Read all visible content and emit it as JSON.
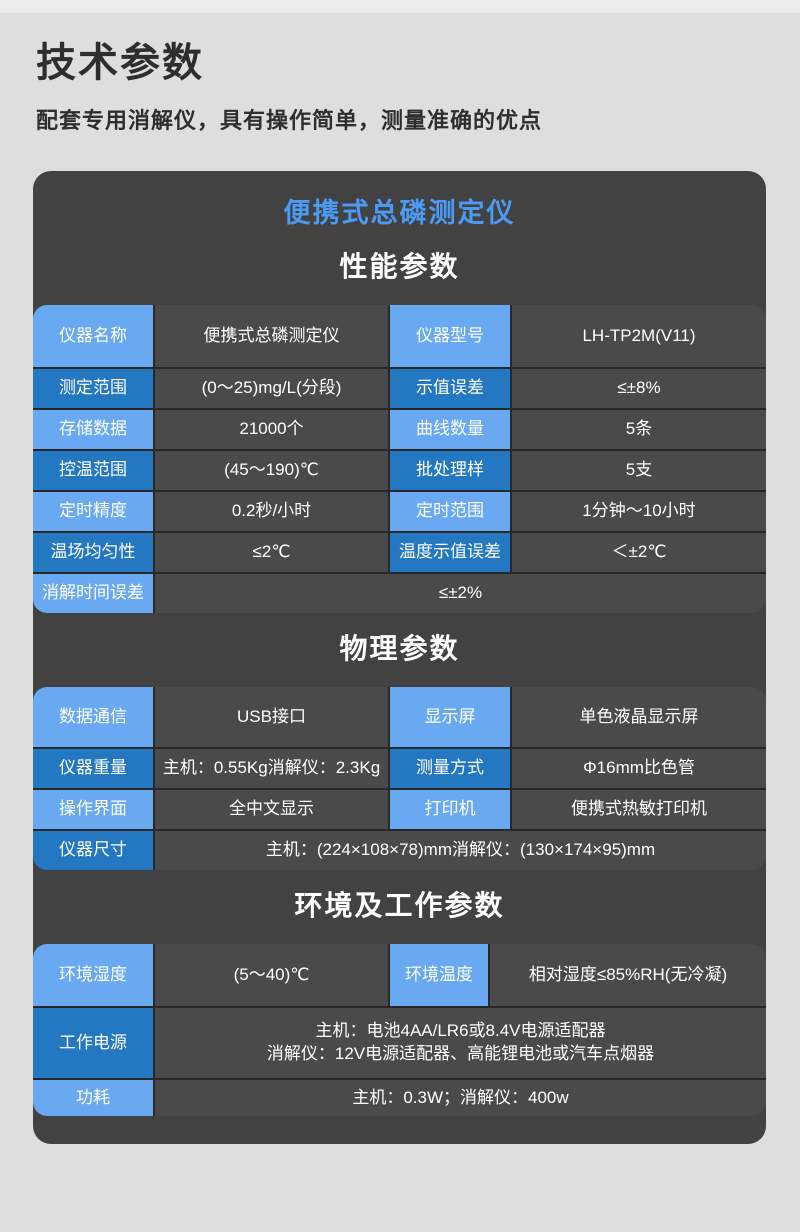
{
  "page": {
    "title": "技术参数",
    "subtitle": "配套专用消解仪，具有操作简单，测量准确的优点"
  },
  "card": {
    "product_title": "便携式总磷测定仪",
    "sections": [
      {
        "heading": "性能参数",
        "rows": [
          {
            "shade": "light",
            "cells": [
              {
                "kind": "label",
                "text": "仪器名称"
              },
              {
                "kind": "value",
                "text": "便携式总磷测定仪"
              },
              {
                "kind": "label",
                "text": "仪器型号"
              },
              {
                "kind": "value",
                "text": "LH-TP2M(V11)"
              }
            ]
          },
          {
            "shade": "dark",
            "cells": [
              {
                "kind": "label",
                "text": "测定范围"
              },
              {
                "kind": "value",
                "text": "(0～25)mg/L(分段)"
              },
              {
                "kind": "label",
                "text": "示值误差"
              },
              {
                "kind": "value",
                "text": "≤±8%"
              }
            ]
          },
          {
            "shade": "light",
            "cells": [
              {
                "kind": "label",
                "text": "存储数据"
              },
              {
                "kind": "value",
                "text": "21000个"
              },
              {
                "kind": "label",
                "text": "曲线数量"
              },
              {
                "kind": "value",
                "text": "5条"
              }
            ]
          },
          {
            "shade": "dark",
            "cells": [
              {
                "kind": "label",
                "text": "控温范围"
              },
              {
                "kind": "value",
                "text": "(45～190)℃"
              },
              {
                "kind": "label",
                "text": "批处理样"
              },
              {
                "kind": "value",
                "text": "5支"
              }
            ]
          },
          {
            "shade": "light",
            "cells": [
              {
                "kind": "label",
                "text": "定时精度"
              },
              {
                "kind": "value",
                "text": "0.2秒/小时"
              },
              {
                "kind": "label",
                "text": "定时范围"
              },
              {
                "kind": "value",
                "text": "1分钟～10小时"
              }
            ]
          },
          {
            "shade": "dark",
            "cells": [
              {
                "kind": "label",
                "text": "温场均匀性"
              },
              {
                "kind": "value",
                "text": "≤2℃"
              },
              {
                "kind": "label",
                "text": "温度示值误差"
              },
              {
                "kind": "value",
                "text": "＜±2℃"
              }
            ]
          },
          {
            "shade": "light",
            "cells": [
              {
                "kind": "label",
                "text": "消解时间误差"
              },
              {
                "kind": "value",
                "text": "≤±2%",
                "span": true
              }
            ]
          }
        ]
      },
      {
        "heading": "物理参数",
        "rows": [
          {
            "shade": "light",
            "cells": [
              {
                "kind": "label",
                "text": "数据通信"
              },
              {
                "kind": "value",
                "text": "USB接口"
              },
              {
                "kind": "label",
                "text": "显示屏"
              },
              {
                "kind": "value",
                "text": "单色液晶显示屏"
              }
            ]
          },
          {
            "shade": "dark",
            "cells": [
              {
                "kind": "label",
                "text": "仪器重量"
              },
              {
                "kind": "value",
                "text": "主机：0.55Kg消解仪：2.3Kg"
              },
              {
                "kind": "label",
                "text": "测量方式"
              },
              {
                "kind": "value",
                "text": "Φ16mm比色管"
              }
            ]
          },
          {
            "shade": "light",
            "cells": [
              {
                "kind": "label",
                "text": "操作界面"
              },
              {
                "kind": "value",
                "text": "全中文显示"
              },
              {
                "kind": "label",
                "text": "打印机"
              },
              {
                "kind": "value",
                "text": "便携式热敏打印机"
              }
            ]
          },
          {
            "shade": "dark",
            "cells": [
              {
                "kind": "label",
                "text": "仪器尺寸"
              },
              {
                "kind": "value",
                "text": "主机：(224×108×78)mm消解仪：(130×174×95)mm",
                "span": true
              }
            ]
          }
        ]
      },
      {
        "heading": "环境及工作参数",
        "rows": [
          {
            "shade": "light",
            "cells": [
              {
                "kind": "label",
                "text": "环境湿度"
              },
              {
                "kind": "value",
                "text": "(5～40)℃"
              },
              {
                "kind": "label",
                "text": "环境温度"
              },
              {
                "kind": "value",
                "text": "相对湿度≤85%RH(无冷凝)"
              }
            ]
          },
          {
            "shade": "dark",
            "cells": [
              {
                "kind": "label",
                "text": "工作电源"
              },
              {
                "kind": "value",
                "text": "主机：电池4AA/LR6或8.4V电源适配器\n消解仪：12V电源适配器、高能锂电池或汽车点烟器",
                "span": true
              }
            ]
          },
          {
            "shade": "light",
            "cells": [
              {
                "kind": "label",
                "text": "功耗"
              },
              {
                "kind": "value",
                "text": "主机：0.3W；消解仪：400w",
                "span": true
              }
            ]
          }
        ]
      }
    ]
  },
  "colors": {
    "page_background": "#dedede",
    "top_strip": "#ececec",
    "card_background": "#424242",
    "value_cell_background": "#4a4a4a",
    "label_light_blue": "#68a9f1",
    "label_dark_blue": "#2478c2",
    "product_title_blue": "#4b9bf5",
    "heading_text": "#ffffff",
    "page_title_text": "#2e2e2e"
  }
}
